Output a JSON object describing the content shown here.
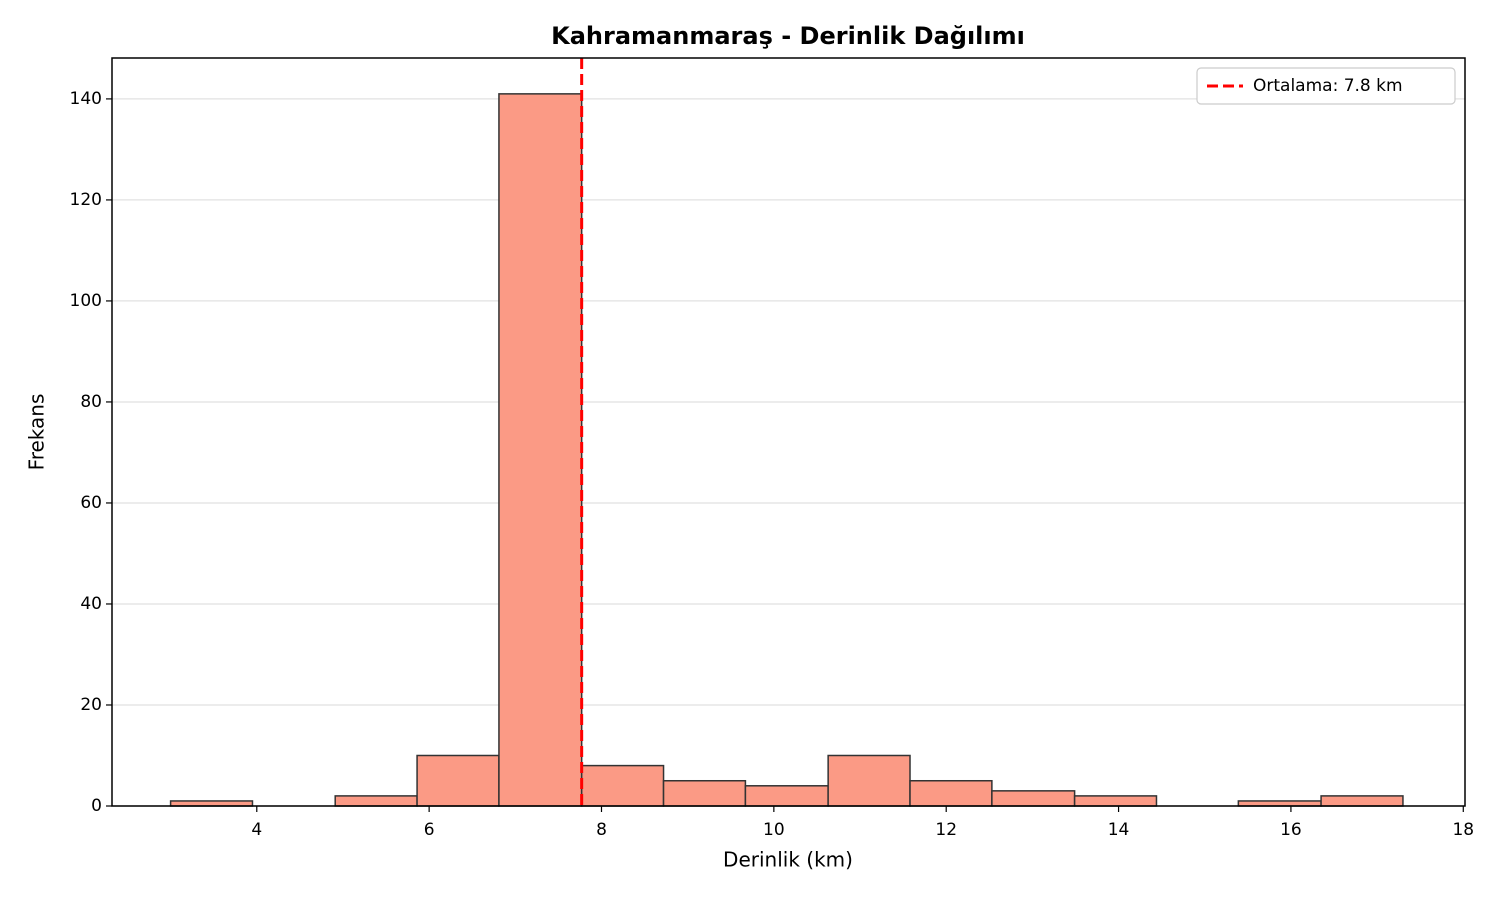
{
  "chart_data": {
    "type": "histogram",
    "title": "Kahramanmaraş - Derinlik Dağılımı",
    "xlabel": "Derinlik (km)",
    "ylabel": "Frekans",
    "bins": [
      3.0,
      3.95,
      4.91,
      5.86,
      6.81,
      7.77,
      8.72,
      9.67,
      10.63,
      11.58,
      12.53,
      13.49,
      14.44,
      15.39,
      16.35,
      17.3
    ],
    "values": [
      1,
      0,
      2,
      10,
      141,
      8,
      5,
      4,
      10,
      5,
      3,
      2,
      0,
      1,
      2
    ],
    "color": "#fb9a85",
    "edgecolor": "#333333",
    "xlim": [
      2.32,
      18.02
    ],
    "xticks": [
      4,
      6,
      8,
      10,
      12,
      14,
      16,
      18
    ],
    "ylim": [
      0,
      148.1
    ],
    "yticks": [
      0,
      20,
      40,
      60,
      80,
      100,
      120,
      140
    ],
    "grid": "y",
    "mean_line": {
      "value": 7.77,
      "label": "Ortalama: 7.8 km",
      "color": "#ff0000"
    },
    "legend": "upper right"
  }
}
